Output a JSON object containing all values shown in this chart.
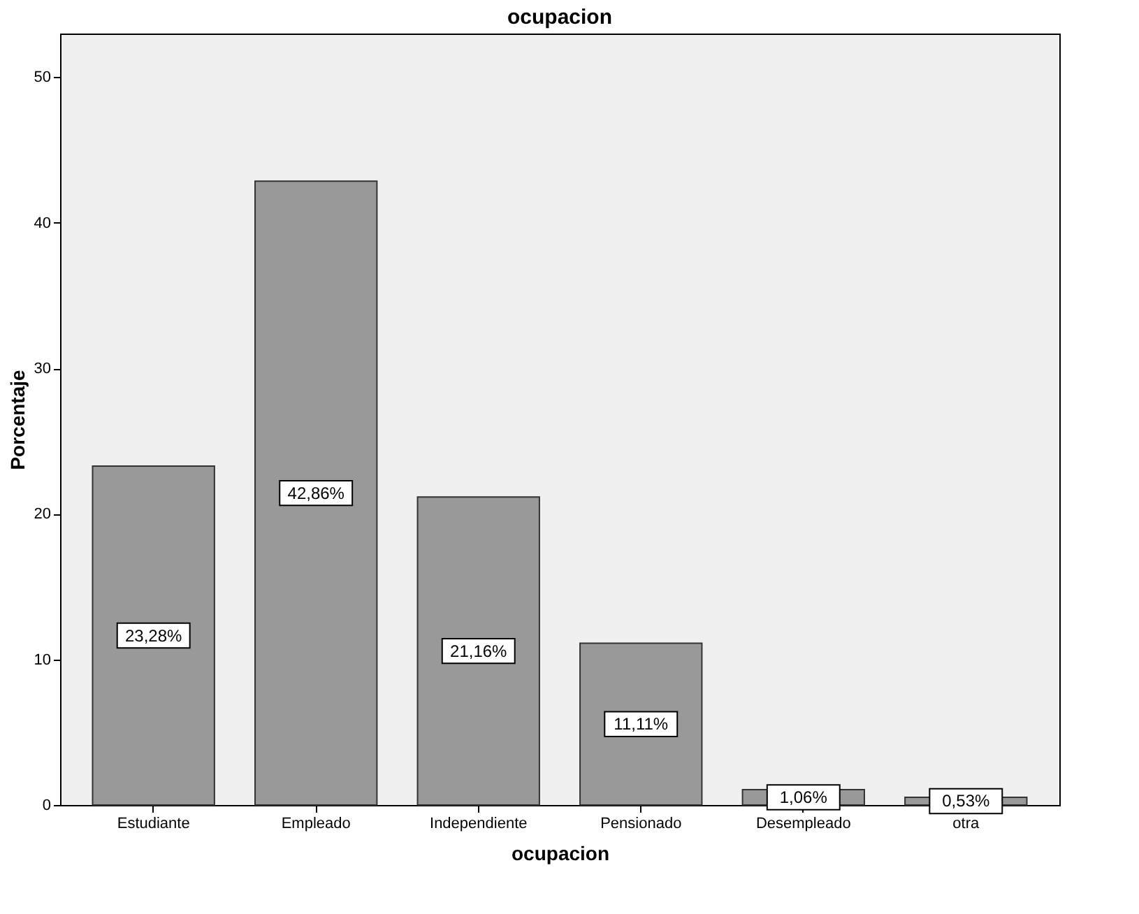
{
  "chart_data": {
    "type": "bar",
    "title": "ocupacion",
    "xlabel": "ocupacion",
    "ylabel": "Porcentaje",
    "categories": [
      "Estudiante",
      "Empleado",
      "Independiente",
      "Pensionado",
      "Desempleado",
      "otra"
    ],
    "values": [
      23.28,
      42.86,
      21.16,
      11.11,
      1.06,
      0.53
    ],
    "value_labels": [
      "23,28%",
      "42,86%",
      "21,16%",
      "11,11%",
      "1,06%",
      "0,53%"
    ],
    "color": "#999999",
    "ylim": [
      0,
      53
    ],
    "yticks": [
      0,
      10,
      20,
      30,
      40,
      50
    ],
    "grid": false
  }
}
